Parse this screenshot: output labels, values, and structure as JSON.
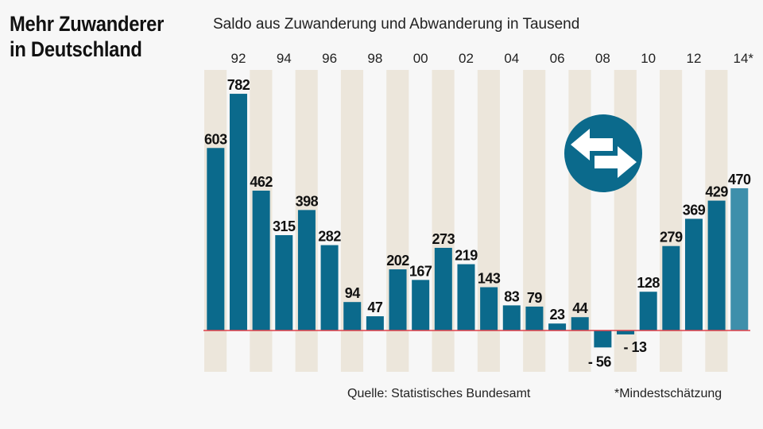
{
  "title_line1": "Mehr Zuwanderer",
  "title_line2": "in Deutschland",
  "source": "Quelle: Statistisches Bundesamt",
  "footnote": "*Mindestschätzung",
  "colors": {
    "bar": "#0b6a8c",
    "bar_estimate": "#3e8fab",
    "stripe": "#ece6db",
    "baseline": "#e0404a",
    "background": "#f7f7f7"
  },
  "icon": "exchange-arrows-icon",
  "chart_data": {
    "type": "bar",
    "title": "Mehr Zuwanderer in Deutschland",
    "subtitle": "Saldo aus Zuwanderung und Abwanderung in Tausend",
    "xlabel": "",
    "ylabel": "",
    "unit": "Tausend",
    "categories": [
      "1991",
      "1992",
      "1993",
      "1994",
      "1995",
      "1996",
      "1997",
      "1998",
      "1999",
      "2000",
      "2001",
      "2002",
      "2003",
      "2004",
      "2005",
      "2006",
      "2007",
      "2008",
      "2009",
      "2010",
      "2011",
      "2012",
      "2013",
      "2014*"
    ],
    "values": [
      603,
      782,
      462,
      315,
      398,
      282,
      94,
      47,
      202,
      167,
      273,
      219,
      143,
      83,
      79,
      23,
      44,
      -56,
      -13,
      128,
      279,
      369,
      429,
      470
    ],
    "value_labels": [
      "603",
      "782",
      "462",
      "315",
      "398",
      "282",
      "94",
      "47",
      "202",
      "167",
      "273",
      "219",
      "143",
      "83",
      "79",
      "23",
      "44",
      "- 56",
      "- 13",
      "128",
      "279",
      "369",
      "429",
      "470"
    ],
    "tick_labels": [
      "92",
      "94",
      "96",
      "98",
      "00",
      "02",
      "04",
      "06",
      "08",
      "10",
      "12",
      "14*"
    ],
    "tick_indices": [
      1,
      3,
      5,
      7,
      9,
      11,
      13,
      15,
      17,
      19,
      21,
      23
    ],
    "estimate_index": 23,
    "ylim": [
      -100,
      860
    ],
    "grid": false,
    "legend": "none"
  }
}
